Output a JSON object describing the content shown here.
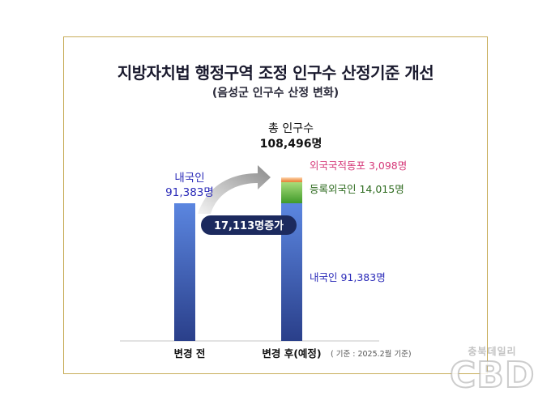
{
  "title": "지방자치법 행정구역 조정 인구수 산정기준 개선",
  "subtitle": "(음성군 인구수 산정 변화)",
  "chart_data": {
    "type": "bar",
    "stacked": true,
    "categories": [
      "변경 전",
      "변경 후(예정)"
    ],
    "series": [
      {
        "name": "내국인",
        "values": [
          91383,
          91383
        ],
        "color": "#3d5fb8"
      },
      {
        "name": "등록외국인",
        "values": [
          0,
          14015
        ],
        "color": "#4a9e2f"
      },
      {
        "name": "외국국적동포",
        "values": [
          0,
          3098
        ],
        "color": "#e8823a"
      }
    ],
    "total_label": "총 인구수",
    "total_value": "108,496명",
    "before_label_name": "내국인",
    "before_label_value": "91,383명",
    "legend_labels": [
      {
        "text": "외국국적동포  3,098명",
        "color": "#d63a7a"
      },
      {
        "text": "등록외국인  14,015명",
        "color": "#2e6b1f"
      },
      {
        "text": "내국인 91,383명",
        "color": "#2a2ab8"
      }
    ],
    "increase_label": "17,113명증가",
    "note": "( 기준 : 2025.2월  기준)"
  },
  "watermark": {
    "sub": "충북데일리",
    "main": "CBD"
  }
}
